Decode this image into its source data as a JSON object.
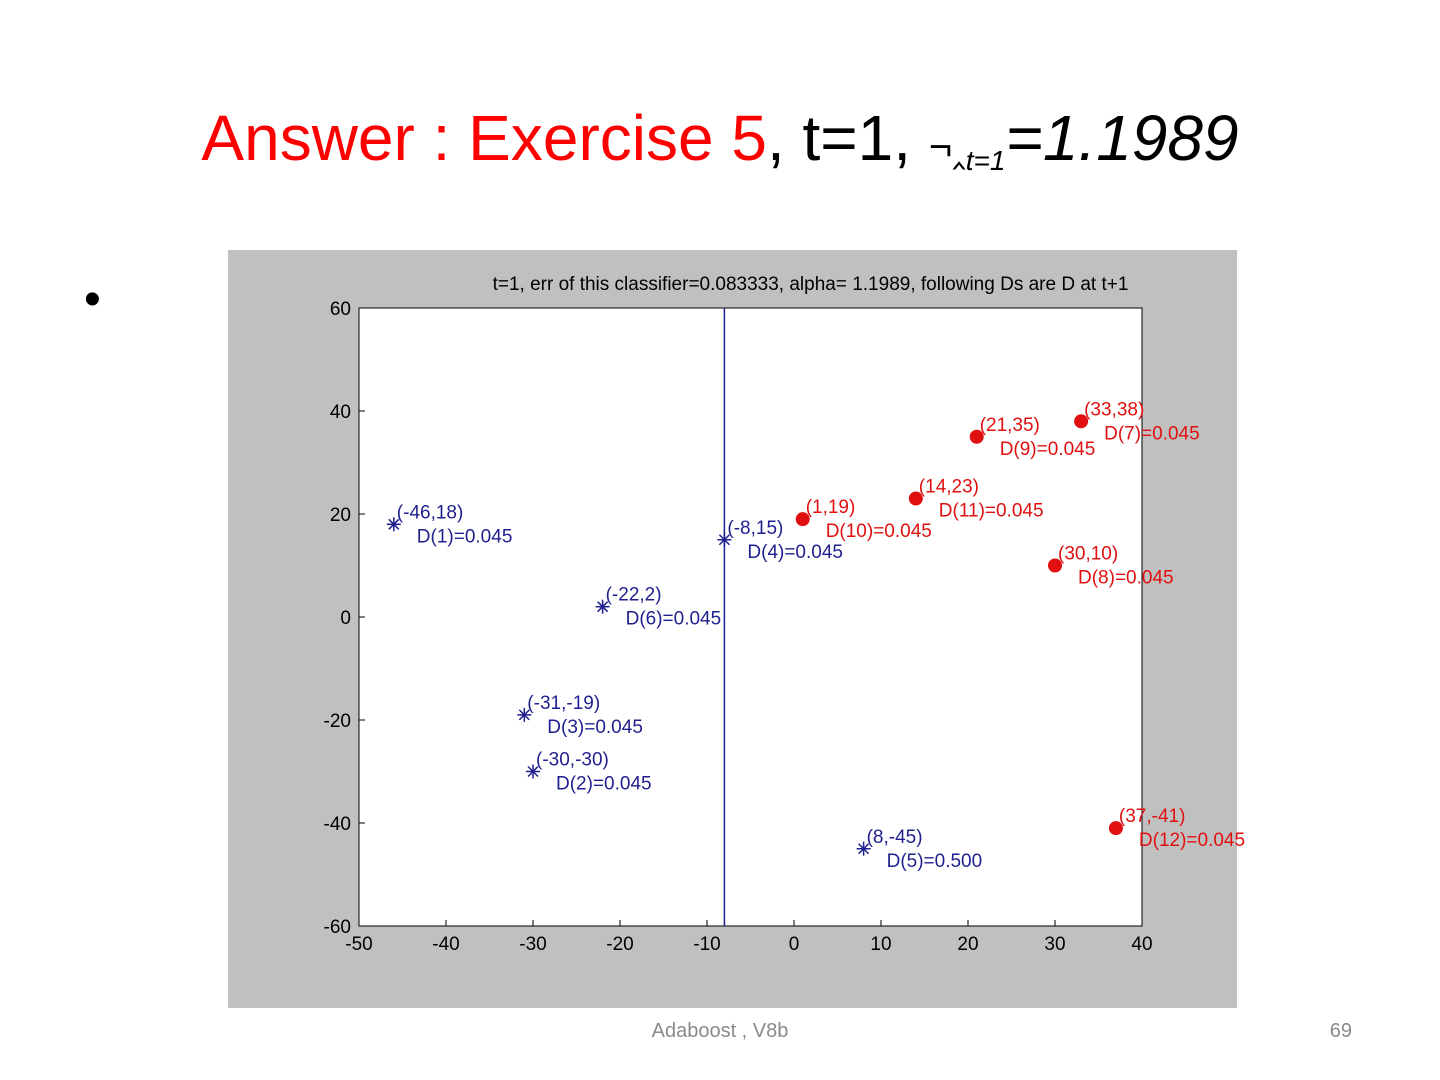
{
  "slide": {
    "title_red": "Answer : Exercise 5",
    "title_rest": ", t=1,",
    "alpha_symbol": "¬‸",
    "alpha_sub": "t=1",
    "alpha_value": "=1.1989",
    "bullet": "•",
    "footer": "Adaboost , V8b",
    "page_number": "69"
  },
  "colors": {
    "title_accent": "#ff0000",
    "negative": "#1f1f8f",
    "positive": "#e01010",
    "figure_bg": "#c0c0c0"
  },
  "chart_data": {
    "type": "scatter",
    "title": "t=1, err of this classifier=0.083333, alpha=  1.1989, following Ds are D at t+1",
    "xlim": [
      -50,
      40
    ],
    "ylim": [
      -60,
      60
    ],
    "x_ticks": [
      -50,
      -40,
      -30,
      -20,
      -10,
      0,
      10,
      20,
      30,
      40
    ],
    "y_ticks": [
      -60,
      -40,
      -20,
      0,
      20,
      40,
      60
    ],
    "decision_boundary_x": -8,
    "grid": false,
    "series": [
      {
        "marker": "star",
        "color": "#1f1f8f",
        "points": [
          {
            "x": -46,
            "y": 18,
            "label": "(-46,18)",
            "dlabel": "D(1)=0.045"
          },
          {
            "x": -30,
            "y": -30,
            "label": "(-30,-30)",
            "dlabel": "D(2)=0.045"
          },
          {
            "x": -31,
            "y": -19,
            "label": "(-31,-19)",
            "dlabel": "D(3)=0.045"
          },
          {
            "x": -8,
            "y": 15,
            "label": "(-8,15)",
            "dlabel": "D(4)=0.045"
          },
          {
            "x": 8,
            "y": -45,
            "label": "(8,-45)",
            "dlabel": "D(5)=0.500"
          },
          {
            "x": -22,
            "y": 2,
            "label": "(-22,2)",
            "dlabel": "D(6)=0.045"
          }
        ]
      },
      {
        "marker": "circle",
        "color": "#e01010",
        "points": [
          {
            "x": 33,
            "y": 38,
            "label": "(33,38)",
            "dlabel": "D(7)=0.045"
          },
          {
            "x": 30,
            "y": 10,
            "label": "(30,10)",
            "dlabel": "D(8)=0.045"
          },
          {
            "x": 21,
            "y": 35,
            "label": "(21,35)",
            "dlabel": "D(9)=0.045"
          },
          {
            "x": 1,
            "y": 19,
            "label": "(1,19)",
            "dlabel": "D(10)=0.045"
          },
          {
            "x": 14,
            "y": 23,
            "label": "(14,23)",
            "dlabel": "D(11)=0.045"
          },
          {
            "x": 37,
            "y": -41,
            "label": "(37,-41)",
            "dlabel": "D(12)=0.045"
          }
        ]
      }
    ]
  }
}
